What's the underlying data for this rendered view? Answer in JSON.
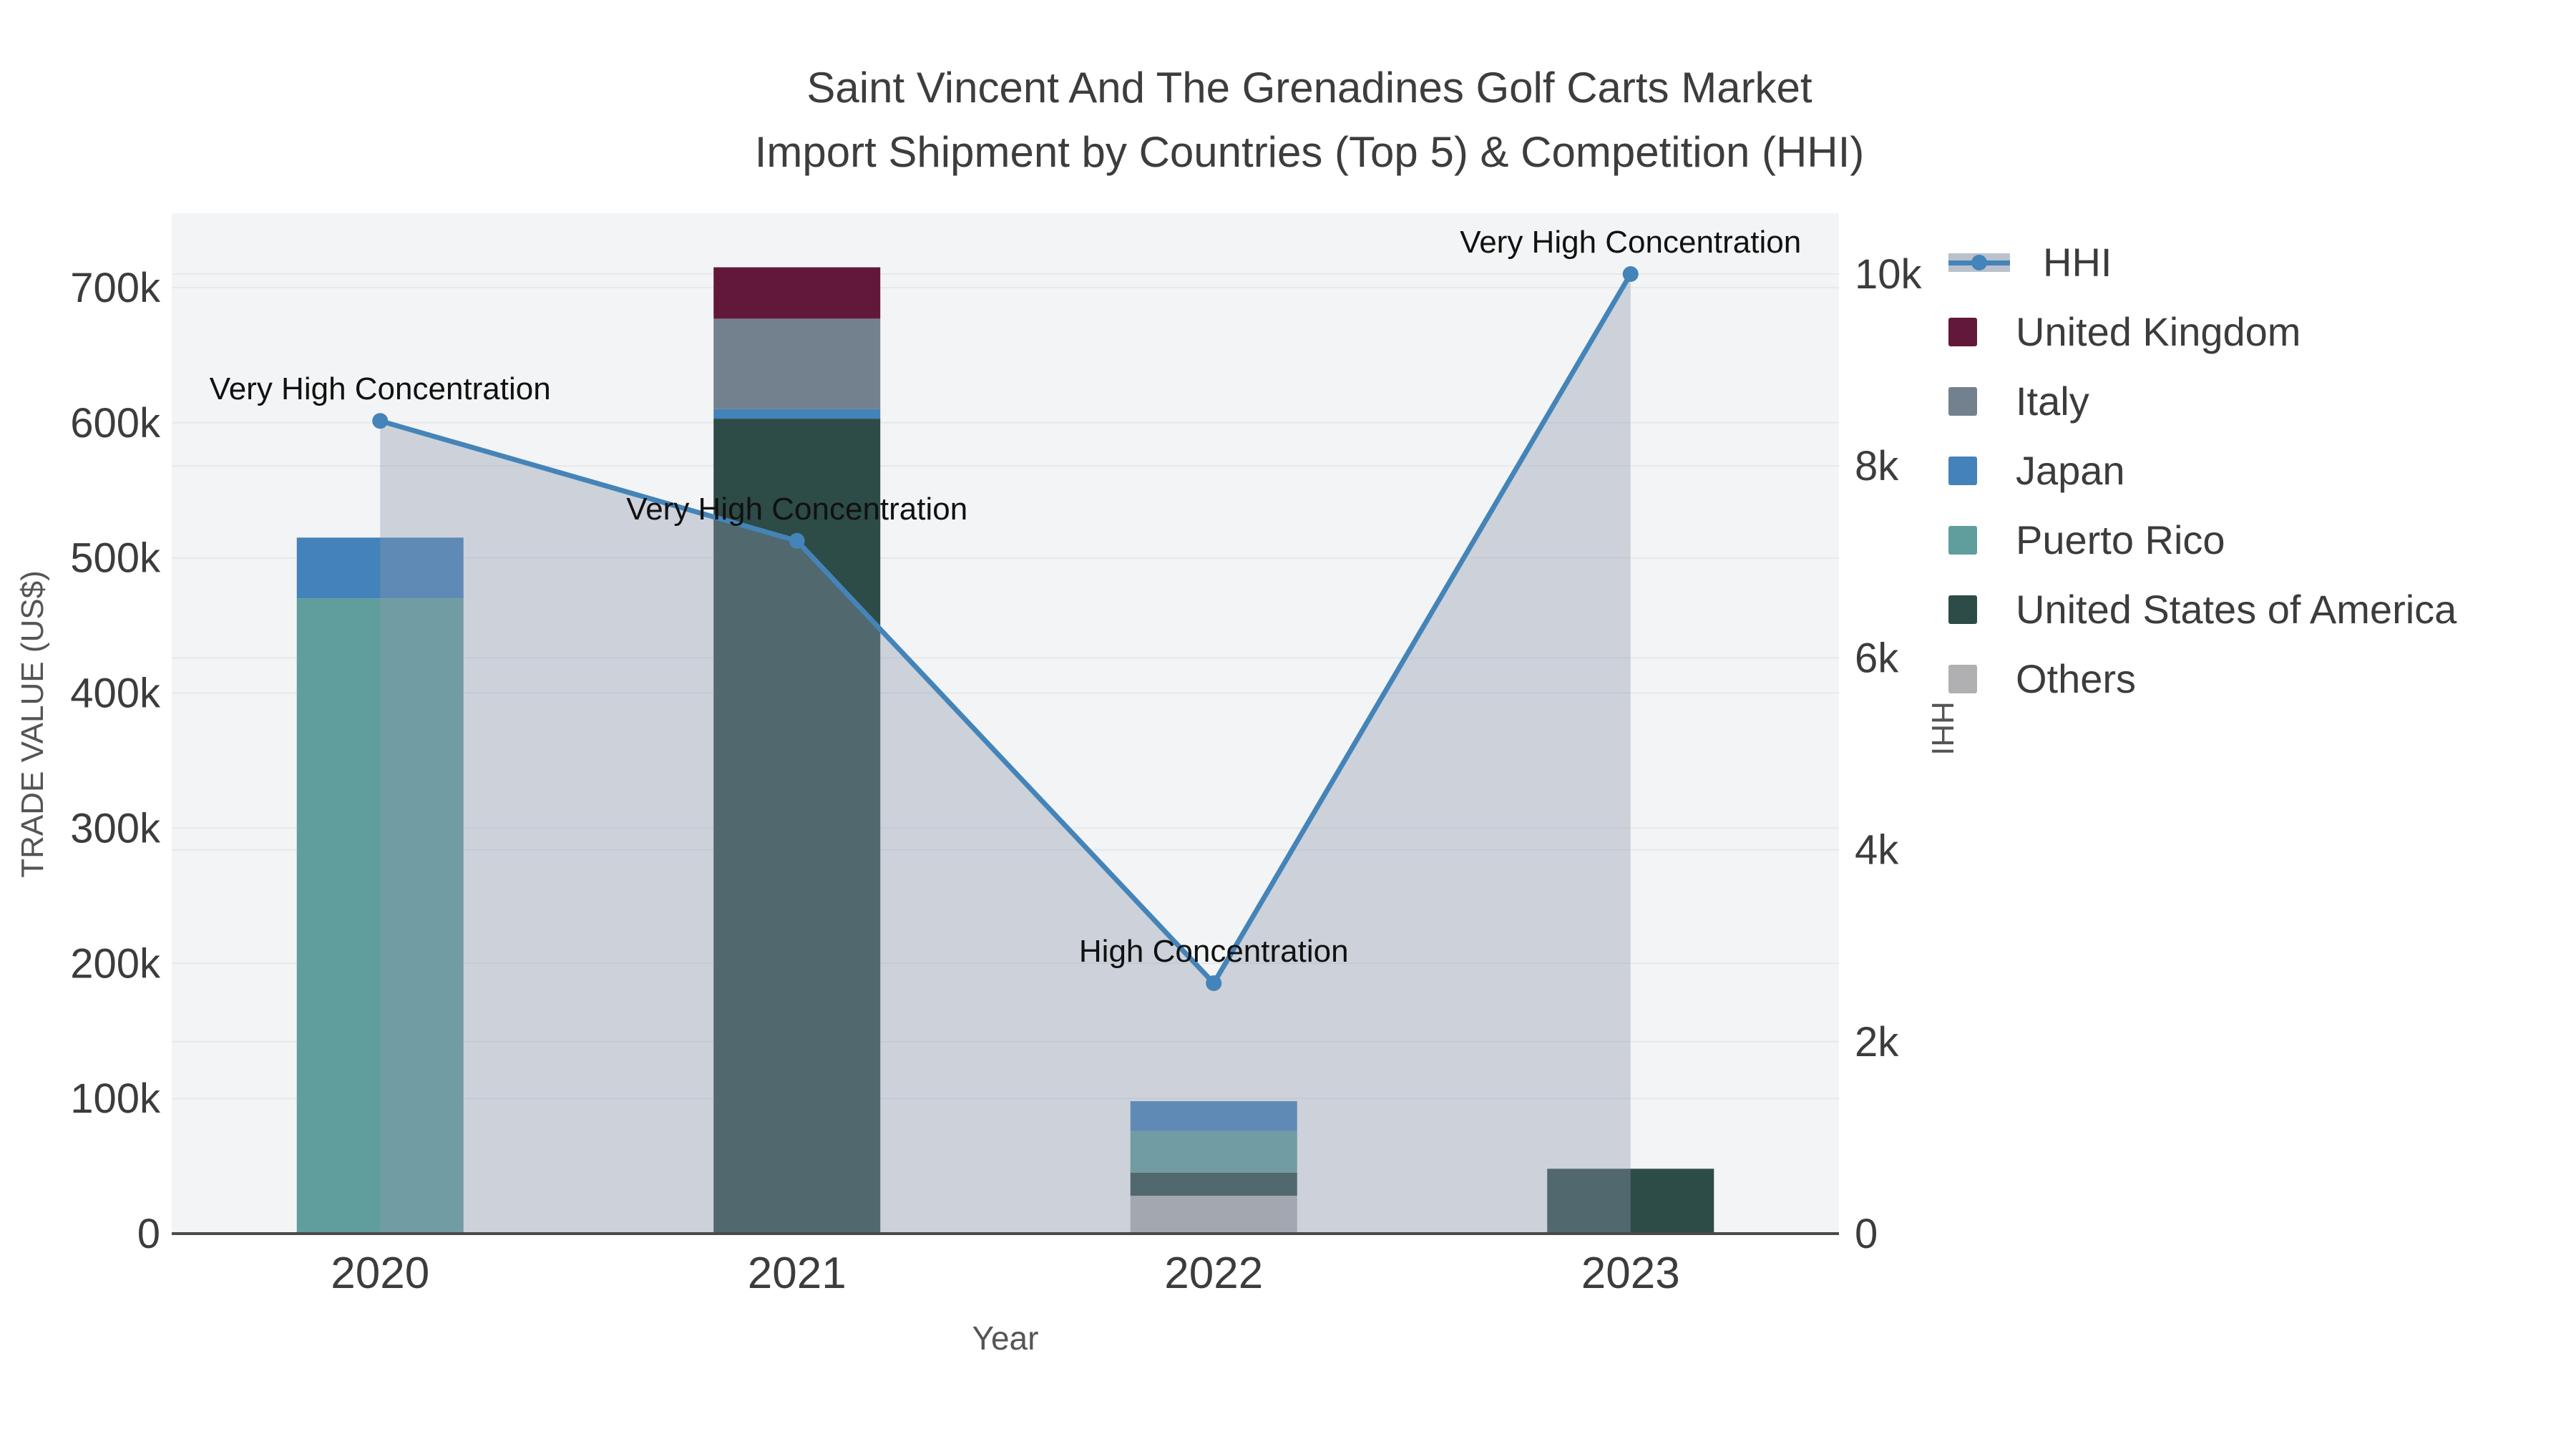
{
  "title": {
    "line1": "Saint Vincent And The Grenadines Golf Carts Market",
    "line2": "Import Shipment by Countries (Top 5) & Competition (HHI)"
  },
  "axes": {
    "x": {
      "title": "Year",
      "categories": [
        "2020",
        "2021",
        "2022",
        "2023"
      ]
    },
    "y_left": {
      "title": "TRADE VALUE (US$)",
      "tick_labels": [
        "0",
        "100k",
        "200k",
        "300k",
        "400k",
        "500k",
        "600k",
        "700k"
      ],
      "tick_values": [
        0,
        100000,
        200000,
        300000,
        400000,
        500000,
        600000,
        700000
      ],
      "range": [
        0,
        755000
      ]
    },
    "y_right": {
      "title": "HHI",
      "tick_labels": [
        "0",
        "2k",
        "4k",
        "6k",
        "8k",
        "10k"
      ],
      "tick_values": [
        0,
        2000,
        4000,
        6000,
        8000,
        10000
      ],
      "range": [
        0,
        10634
      ]
    }
  },
  "legend": {
    "items": [
      {
        "label": "HHI",
        "type": "line",
        "color": "#4484b8"
      },
      {
        "label": "United Kingdom",
        "type": "swatch",
        "color": "#621839"
      },
      {
        "label": "Italy",
        "type": "swatch",
        "color": "#73818f"
      },
      {
        "label": "Japan",
        "type": "swatch",
        "color": "#4382ba"
      },
      {
        "label": "Puerto Rico",
        "type": "swatch",
        "color": "#5f9e9d"
      },
      {
        "label": "United States of America",
        "type": "swatch",
        "color": "#2d4b47"
      },
      {
        "label": "Others",
        "type": "swatch",
        "color": "#b0b0b2"
      }
    ]
  },
  "chart_data": {
    "type": "combo-stacked-bar-line",
    "categories": [
      "2020",
      "2021",
      "2022",
      "2023"
    ],
    "bar_value_axis": "left",
    "bar_unit": "US$",
    "bar_series": [
      {
        "name": "Others",
        "color": "#b0b0b2",
        "values": [
          0,
          0,
          28000,
          0
        ]
      },
      {
        "name": "United States of America",
        "color": "#2d4b47",
        "values": [
          0,
          603000,
          17000,
          48000
        ]
      },
      {
        "name": "Puerto Rico",
        "color": "#5f9e9d",
        "values": [
          470000,
          0,
          31000,
          0
        ]
      },
      {
        "name": "Japan",
        "color": "#4382ba",
        "values": [
          45000,
          7000,
          22000,
          0
        ]
      },
      {
        "name": "Italy",
        "color": "#73818f",
        "values": [
          0,
          67000,
          0,
          0
        ]
      },
      {
        "name": "United Kingdom",
        "color": "#621839",
        "values": [
          0,
          38000,
          0,
          0
        ]
      }
    ],
    "bar_totals": [
      515000,
      715000,
      98000,
      48000
    ],
    "line_series": {
      "name": "HHI",
      "axis": "right",
      "color": "#4484b8",
      "fill_color": "rgba(141,152,174,0.38)",
      "values": [
        8470,
        7220,
        2610,
        10000
      ]
    },
    "annotations": [
      {
        "category": "2020",
        "text": "Very High Concentration"
      },
      {
        "category": "2021",
        "text": "Very High Concentration"
      },
      {
        "category": "2022",
        "text": "High Concentration"
      },
      {
        "category": "2023",
        "text": "Very High Concentration"
      }
    ]
  },
  "colors": {
    "plot_bg": "#f3f4f5",
    "grid": "#e6e8ea",
    "axis_line": "#4a4a4a",
    "tick_text": "#3c3c3c",
    "axis_title_text": "#555555",
    "title_text": "#3d3d3d",
    "annotation_text": "#111111"
  }
}
